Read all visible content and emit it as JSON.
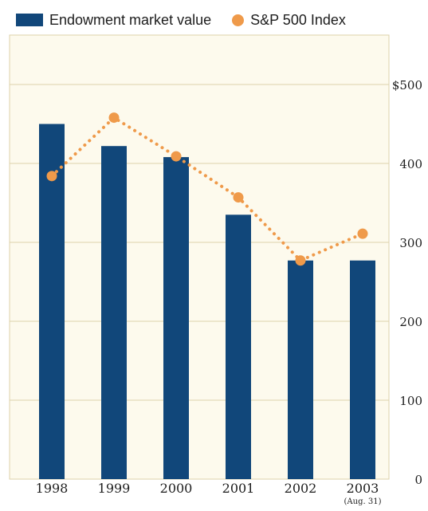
{
  "chart_data": {
    "type": "bar",
    "categories": [
      "1998",
      "1999",
      "2000",
      "2001",
      "2002",
      "2003"
    ],
    "category_notes": [
      "",
      "",
      "",
      "",
      "",
      "(Aug. 31)"
    ],
    "series": [
      {
        "name": "Endowment market value",
        "kind": "bar",
        "color": "#11477a",
        "values": [
          450,
          422,
          408,
          335,
          277,
          277
        ]
      },
      {
        "name": "S&P 500 Index",
        "kind": "line-dotted-markers",
        "color": "#ef9a4a",
        "values": [
          384,
          458,
          409,
          357,
          277,
          311
        ]
      }
    ],
    "ylim": [
      0,
      500
    ],
    "yticks": [
      0,
      100,
      200,
      300,
      400,
      500
    ],
    "ytick_labels": [
      "0",
      "100",
      "200",
      "300",
      "400",
      "$500"
    ],
    "y_axis_side": "right",
    "grid": true,
    "legend_position": "top-left",
    "background": "#fdfaed",
    "grid_color": "#ddd2aa"
  }
}
